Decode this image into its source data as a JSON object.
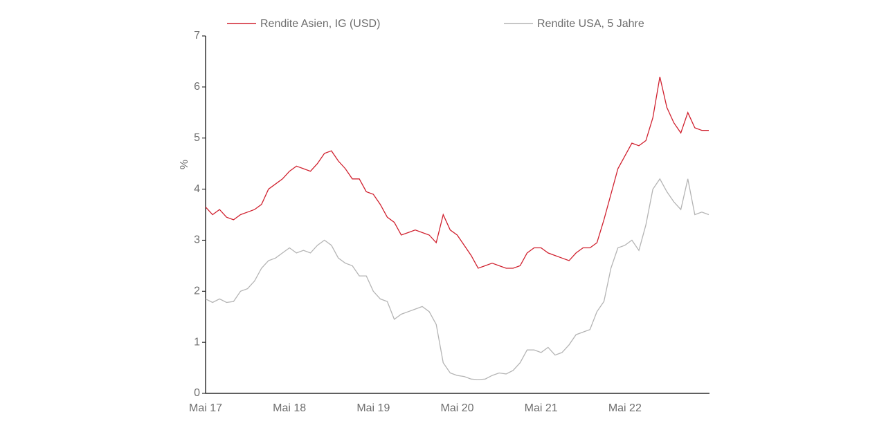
{
  "chart_data": {
    "type": "line",
    "y_label": "%",
    "categories": [
      "Mai 17",
      null,
      null,
      null,
      null,
      null,
      null,
      null,
      null,
      null,
      null,
      null,
      "Mai 18",
      null,
      null,
      null,
      null,
      null,
      null,
      null,
      null,
      null,
      null,
      null,
      "Mai 19",
      null,
      null,
      null,
      null,
      null,
      null,
      null,
      null,
      null,
      null,
      null,
      "Mai 20",
      null,
      null,
      null,
      null,
      null,
      null,
      null,
      null,
      null,
      null,
      null,
      "Mai 21",
      null,
      null,
      null,
      null,
      null,
      null,
      null,
      null,
      null,
      null,
      null,
      "Mai 22",
      null,
      null,
      null,
      null,
      null,
      null,
      null,
      null,
      null,
      null,
      null,
      null
    ],
    "series": [
      {
        "name": "Rendite Asien, IG (USD)",
        "color": "#d0202e",
        "values": [
          3.65,
          3.5,
          3.6,
          3.45,
          3.4,
          3.5,
          3.55,
          3.6,
          3.7,
          4.0,
          4.1,
          4.2,
          4.35,
          4.45,
          4.4,
          4.35,
          4.5,
          4.7,
          4.75,
          4.55,
          4.4,
          4.2,
          4.2,
          3.95,
          3.9,
          3.7,
          3.45,
          3.35,
          3.1,
          3.15,
          3.2,
          3.15,
          3.1,
          2.95,
          3.5,
          3.2,
          3.1,
          2.9,
          2.7,
          2.45,
          2.5,
          2.55,
          2.5,
          2.45,
          2.45,
          2.5,
          2.75,
          2.85,
          2.85,
          2.75,
          2.7,
          2.65,
          2.6,
          2.75,
          2.85,
          2.85,
          2.95,
          3.4,
          3.9,
          4.4,
          4.65,
          4.9,
          4.85,
          4.95,
          5.4,
          6.2,
          5.6,
          5.3,
          5.1,
          5.5,
          5.2,
          5.15,
          5.15
        ]
      },
      {
        "name": "Rendite USA, 5 Jahre",
        "color": "#b4b4b4",
        "values": [
          1.85,
          1.78,
          1.85,
          1.78,
          1.8,
          2.0,
          2.05,
          2.2,
          2.45,
          2.6,
          2.65,
          2.75,
          2.85,
          2.75,
          2.8,
          2.75,
          2.9,
          3.0,
          2.9,
          2.65,
          2.55,
          2.5,
          2.3,
          2.3,
          2.0,
          1.85,
          1.8,
          1.45,
          1.55,
          1.6,
          1.65,
          1.7,
          1.6,
          1.35,
          0.6,
          0.4,
          0.35,
          0.33,
          0.28,
          0.27,
          0.28,
          0.35,
          0.4,
          0.38,
          0.45,
          0.6,
          0.85,
          0.85,
          0.8,
          0.9,
          0.75,
          0.8,
          0.95,
          1.15,
          1.2,
          1.25,
          1.6,
          1.8,
          2.45,
          2.85,
          2.9,
          3.0,
          2.8,
          3.3,
          4.0,
          4.2,
          3.95,
          3.75,
          3.6,
          4.2,
          3.5,
          3.55,
          3.5
        ]
      }
    ],
    "ylim": [
      0,
      7
    ],
    "yticks": [
      0,
      1,
      2,
      3,
      4,
      5,
      6,
      7
    ],
    "grid": false,
    "legend": "top"
  }
}
